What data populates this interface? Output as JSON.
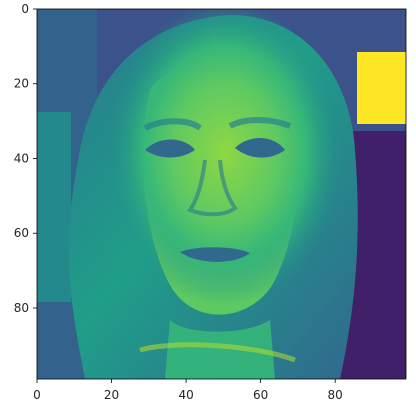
{
  "chart_data": {
    "type": "heatmap",
    "title": "",
    "xlabel": "",
    "ylabel": "",
    "xlim": [
      0,
      99
    ],
    "ylim": [
      99,
      0
    ],
    "grid": false,
    "colormap": "viridis",
    "image_size": [
      100,
      100
    ],
    "content": "grayscale face portrait rendered with a viridis colormap",
    "x_ticks": [
      {
        "value": 0,
        "label": "0"
      },
      {
        "value": 20,
        "label": "20"
      },
      {
        "value": 40,
        "label": "40"
      },
      {
        "value": 60,
        "label": "60"
      },
      {
        "value": 80,
        "label": "80"
      }
    ],
    "y_ticks": [
      {
        "value": 0,
        "label": "0"
      },
      {
        "value": 20,
        "label": "20"
      },
      {
        "value": 40,
        "label": "40"
      },
      {
        "value": 60,
        "label": "60"
      },
      {
        "value": 80,
        "label": "80"
      }
    ],
    "colors": {
      "dark": "#440154",
      "deep_blue": "#3b528b",
      "teal": "#21918c",
      "green": "#5ec962",
      "yellow": "#fde725"
    }
  }
}
